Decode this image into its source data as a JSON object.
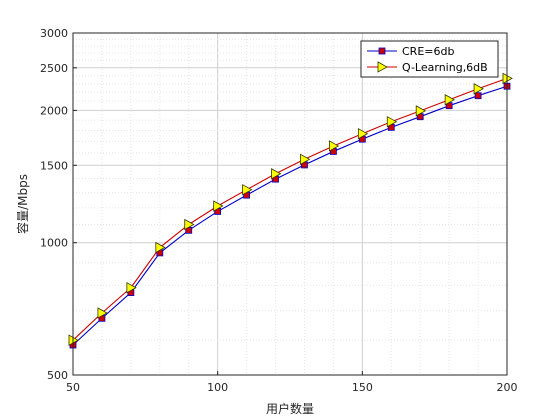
{
  "chart_data": {
    "type": "line",
    "xlabel": "用户数量",
    "ylabel": "容量/Mbps",
    "xlim": [
      50,
      200
    ],
    "ylim": [
      500,
      3000
    ],
    "yscale": "log",
    "xticks": [
      50,
      100,
      150,
      200
    ],
    "yticks": [
      500,
      1000,
      1500,
      2000,
      2500,
      3000
    ],
    "grid": "major and minor dotted",
    "legend_position": "top-right",
    "x": [
      50,
      60,
      70,
      80,
      90,
      100,
      110,
      120,
      130,
      140,
      150,
      160,
      170,
      180,
      190,
      200
    ],
    "series": [
      {
        "name": "CRE=6db",
        "color": "#0000c8",
        "marker": "square",
        "marker_color": "#cc0000",
        "values": [
          585,
          673,
          770,
          948,
          1067,
          1178,
          1283,
          1395,
          1503,
          1613,
          1720,
          1830,
          1935,
          2050,
          2160,
          2270
        ]
      },
      {
        "name": "Q-Learning,6dB",
        "color": "#cc0000",
        "marker": "triangle-right",
        "marker_color": "#ffff00",
        "values": [
          600,
          692,
          790,
          975,
          1100,
          1212,
          1320,
          1435,
          1548,
          1660,
          1770,
          1885,
          1995,
          2115,
          2240,
          2365
        ]
      }
    ]
  }
}
